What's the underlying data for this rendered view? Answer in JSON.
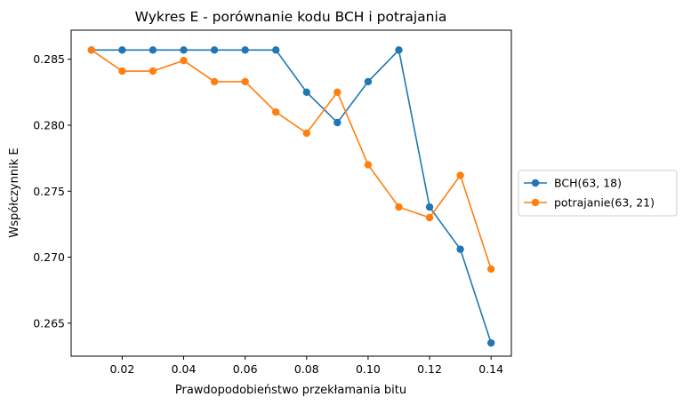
{
  "chart_data": {
    "type": "line",
    "title": "Wykres E - porównanie kodu BCH i potrajania",
    "xlabel": "Prawdopodobieństwo przekłamania bitu",
    "ylabel": "Współczynnik E",
    "xlim": [
      0.0034,
      0.1466
    ],
    "ylim": [
      0.2625,
      0.2872
    ],
    "xticks": [
      0.02,
      0.04,
      0.06,
      0.08,
      0.1,
      0.12,
      0.14
    ],
    "xtick_labels": [
      "0.02",
      "0.04",
      "0.06",
      "0.08",
      "0.10",
      "0.12",
      "0.14"
    ],
    "yticks": [
      0.265,
      0.27,
      0.275,
      0.28,
      0.285
    ],
    "ytick_labels": [
      "0.265",
      "0.270",
      "0.275",
      "0.280",
      "0.285"
    ],
    "grid": false,
    "legend_position": "outside-right",
    "x": [
      0.01,
      0.02,
      0.03,
      0.04,
      0.05,
      0.06,
      0.07,
      0.08,
      0.09,
      0.1,
      0.11,
      0.12,
      0.13,
      0.14
    ],
    "series": [
      {
        "name": "BCH(63, 18)",
        "color": "#1f77b4",
        "marker": "circle",
        "values": [
          0.2857,
          0.2857,
          0.2857,
          0.2857,
          0.2857,
          0.2857,
          0.2857,
          0.2825,
          0.2802,
          0.2833,
          0.2857,
          0.2738,
          0.2706,
          0.2635
        ]
      },
      {
        "name": "potrajanie(63, 21)",
        "color": "#ff7f0e",
        "marker": "circle",
        "values": [
          0.2857,
          0.2841,
          0.2841,
          0.2849,
          0.2833,
          0.2833,
          0.281,
          0.2794,
          0.2825,
          0.277,
          0.2738,
          0.273,
          0.2762,
          0.2691
        ]
      }
    ]
  }
}
